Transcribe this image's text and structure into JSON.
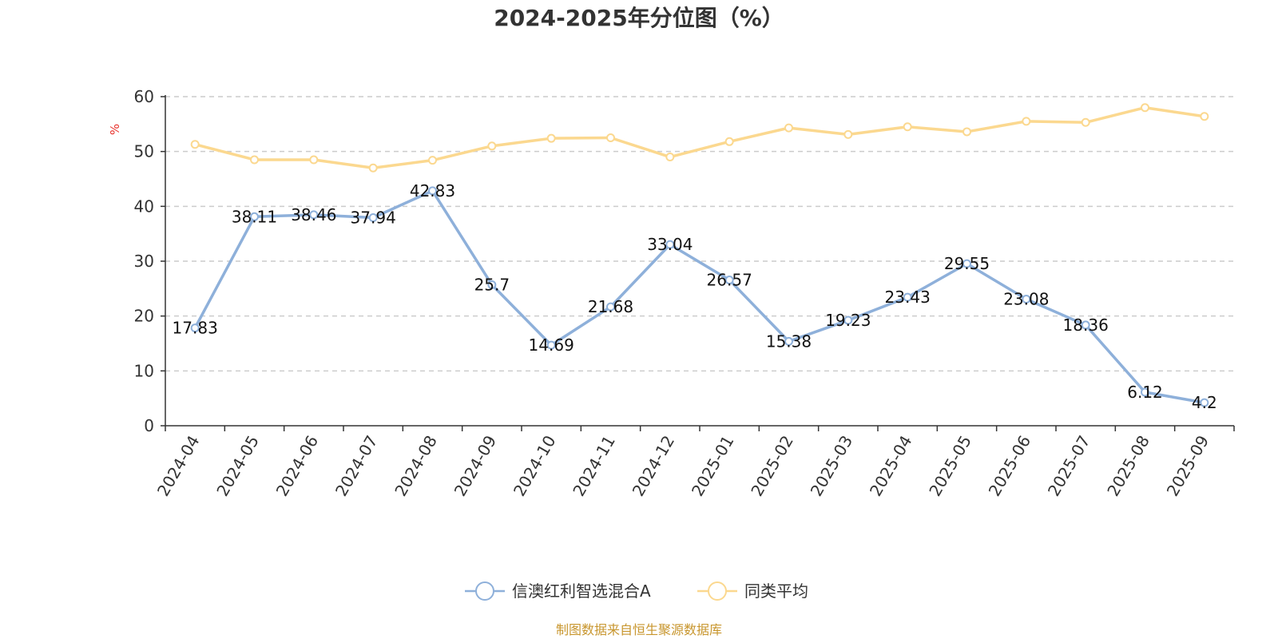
{
  "chart_data": {
    "type": "line",
    "title": "2024-2025年分位图（%）",
    "ylabel": "%",
    "xlabel": "",
    "ylim": [
      0,
      60
    ],
    "yticks": [
      0,
      10,
      20,
      30,
      40,
      50,
      60
    ],
    "grid": true,
    "legend_position": "bottom-center",
    "categories": [
      "2024-04",
      "2024-05",
      "2024-06",
      "2024-07",
      "2024-08",
      "2024-09",
      "2024-10",
      "2024-11",
      "2024-12",
      "2025-01",
      "2025-02",
      "2025-03",
      "2025-04",
      "2025-05",
      "2025-06",
      "2025-07",
      "2025-08",
      "2025-09"
    ],
    "series": [
      {
        "name": "信澳红利智选混合A",
        "color": "#8eb0da",
        "show_labels": true,
        "values": [
          17.83,
          38.11,
          38.46,
          37.94,
          42.83,
          25.7,
          14.69,
          21.68,
          33.04,
          26.57,
          15.38,
          19.23,
          23.43,
          29.55,
          23.08,
          18.36,
          6.12,
          4.2
        ],
        "labels": [
          "17.83",
          "38.11",
          "38.46",
          "37.94",
          "42.83",
          "25.7",
          "14.69",
          "21.68",
          "33.04",
          "26.57",
          "15.38",
          "19.23",
          "23.43",
          "29.55",
          "23.08",
          "18.36",
          "6.12",
          "4.2"
        ]
      },
      {
        "name": "同类平均",
        "color": "#fbd88f",
        "show_labels": false,
        "values": [
          51.3,
          48.5,
          48.5,
          47.0,
          48.4,
          51.0,
          52.4,
          52.5,
          49.0,
          51.8,
          54.3,
          53.1,
          54.5,
          53.6,
          55.5,
          55.3,
          58.0,
          56.4
        ]
      }
    ],
    "source": "制图数据来自恒生聚源数据库"
  },
  "colors": {
    "title": "#333333",
    "axis": "#333333",
    "grid": "#cccccc",
    "unit": "#e8312b",
    "source": "#c8962e"
  }
}
